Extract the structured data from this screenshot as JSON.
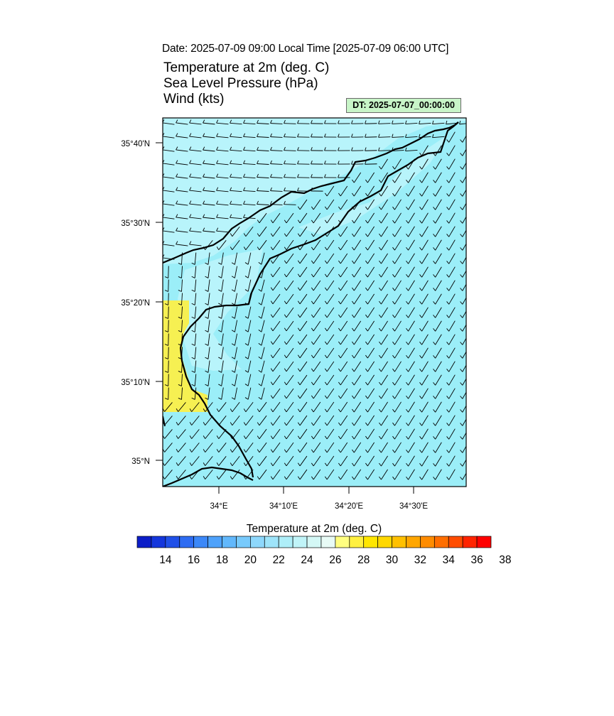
{
  "header": {
    "date_line": "Date: 2025-07-09  09:00 Local Time [2025-07-09  06:00 UTC]",
    "fields": [
      "Temperature at 2m   (deg. C)",
      "Sea Level Pressure   (hPa)",
      "Wind   (kts)"
    ],
    "dt_badge": "DT: 2025-07-07_00:00:00",
    "dt_badge_color": "#c8f5c8"
  },
  "map": {
    "lat_labels": [
      "35°40'N",
      "35°30'N",
      "35°20'N",
      "35°10'N",
      "35°N"
    ],
    "lon_labels": [
      "34°E",
      "34°10'E",
      "34°20'E",
      "34°30'E"
    ],
    "land_color": "#9beef8",
    "sea_color": "#9beef8",
    "light_zone_color": "#b8f4fb",
    "warm_zone_color": "#f6f052",
    "coast_color": "#000000",
    "wind_barb_color": "#000000"
  },
  "colorbar": {
    "title": "Temperature at 2m  (deg. C)",
    "labels": [
      "14",
      "16",
      "18",
      "20",
      "22",
      "24",
      "26",
      "28",
      "30",
      "32",
      "34",
      "36",
      "38"
    ],
    "colors": [
      "#0c1ec8",
      "#1436dc",
      "#2050e8",
      "#2e6cf2",
      "#3c88f8",
      "#4ea2fb",
      "#62b8fc",
      "#78cafc",
      "#8ed8fc",
      "#9ee4fa",
      "#aeeef8",
      "#c0f4f8",
      "#d4f8f6",
      "#e8fbf6",
      "#fffe80",
      "#fff040",
      "#ffe600",
      "#ffd800",
      "#ffc000",
      "#ffa600",
      "#ff8c00",
      "#ff6e00",
      "#ff4c00",
      "#ff2400",
      "#ff0000"
    ]
  }
}
